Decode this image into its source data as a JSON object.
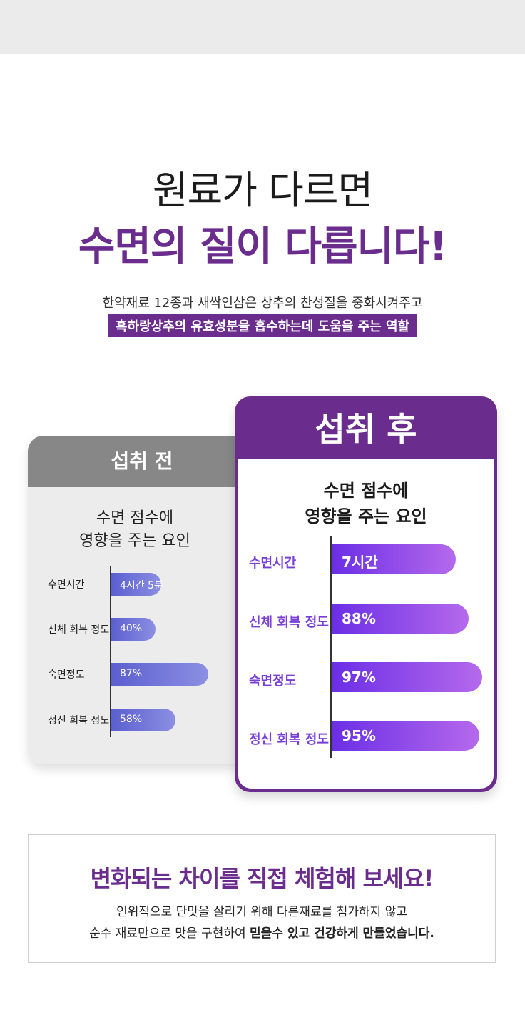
{
  "headline": {
    "line1": "원료가 다르면",
    "line2": "수면의 질이 다릅니다!"
  },
  "subtext": {
    "line1": "한약재료 12종과 새싹인삼은 상추의 찬성질을 중화시켜주고",
    "line2_highlight": "흑하랑상추의 유효성분을 흡수하는데 도움을 주는 역할"
  },
  "before_card": {
    "header": "섭취 전",
    "subtitle_line1": "수면 점수에",
    "subtitle_line2": "영향을 주는 요인",
    "rows": [
      {
        "label": "수면시간",
        "value": "4시간 5분",
        "fill": 0.45
      },
      {
        "label": "신체 회복 정도",
        "value": "40%",
        "fill": 0.4
      },
      {
        "label": "숙면정도",
        "value": "87%",
        "fill": 0.87
      },
      {
        "label": "정신 회복 정도",
        "value": "58%",
        "fill": 0.58
      }
    ],
    "colors": {
      "header": "#878787",
      "bar": "#5b5fd0"
    }
  },
  "after_card": {
    "header": "섭취 후",
    "subtitle_line1": "수면 점수에",
    "subtitle_line2": "영향을 주는 요인",
    "rows": [
      {
        "label": "수면시간",
        "value": "7시간",
        "fill": 0.8
      },
      {
        "label": "신체 회복 정도",
        "value": "88%",
        "fill": 0.88
      },
      {
        "label": "숙면정도",
        "value": "97%",
        "fill": 0.97
      },
      {
        "label": "정신 회복 정도",
        "value": "95%",
        "fill": 0.95
      }
    ],
    "colors": {
      "header": "#6a2d8d",
      "bar": "#7a3fe0"
    }
  },
  "bottom": {
    "title": "변화되는 차이를 직접 체험해 보세요!",
    "line1": "인위적으로 단맛을 살리기 위해 다른재료를 첨가하지 않고",
    "line2_prefix": "순수 재료만으로 맛을 구현하여 ",
    "line2_bold": "믿을수 있고 건강하게 만들었습니다."
  },
  "colors": {
    "brand_purple": "#6a2d8d",
    "accent_violet": "#7a3fd6"
  }
}
